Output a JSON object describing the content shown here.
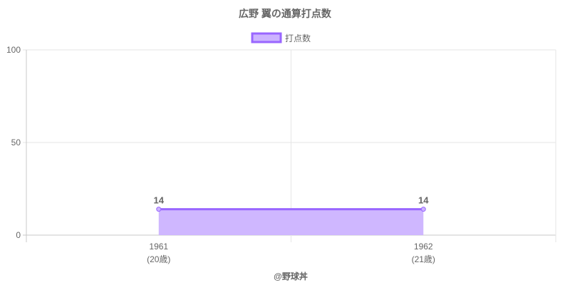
{
  "chart_data": {
    "type": "area",
    "title": "広野 翼の通算打点数",
    "categories": [
      "1961",
      "1962"
    ],
    "category_sublabels": [
      "(20歳)",
      "(21歳)"
    ],
    "series": [
      {
        "name": "打点数",
        "values": [
          14,
          14
        ],
        "data_labels": [
          "14",
          "14"
        ]
      }
    ],
    "ylim": [
      0,
      100
    ],
    "yticks": [
      "0",
      "50",
      "100"
    ],
    "grid": true,
    "legend": "top",
    "colors": {
      "line": "#9966ff",
      "fill": "#ccb3ff",
      "grid": "#e6e6e6",
      "axis": "#c8c8c8",
      "text": "#666666"
    }
  },
  "footer": {
    "credit": "@野球丼"
  }
}
